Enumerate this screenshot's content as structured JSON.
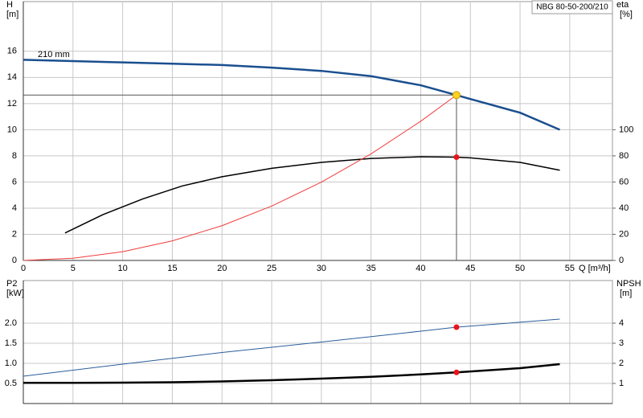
{
  "chart_data": [
    {
      "type": "line",
      "title": "NBG 80-50-200/210",
      "annotation": "210 mm",
      "y_label": [
        "H",
        "[m]"
      ],
      "y2_label": [
        "eta",
        "[%]"
      ],
      "x_label": "Q [m³/h]",
      "xlim": [
        0,
        59.3
      ],
      "xticks": [
        0,
        5,
        10,
        15,
        20,
        25,
        30,
        35,
        40,
        45,
        50,
        55
      ],
      "ylim": [
        0,
        19.8
      ],
      "yticks": [
        0,
        2,
        4,
        6,
        8,
        10,
        12,
        14,
        16
      ],
      "y2lim": [
        0,
        198
      ],
      "y2ticks": [
        0,
        20,
        40,
        60,
        80,
        100
      ],
      "grid": true,
      "series": [
        {
          "color": "#1a4f8f",
          "x": [
            0,
            5,
            10,
            15,
            20,
            25,
            30,
            35,
            40,
            43.6,
            45,
            50,
            54
          ],
          "values": [
            15.35,
            15.25,
            15.15,
            15.05,
            14.95,
            14.75,
            14.5,
            14.1,
            13.4,
            12.65,
            12.35,
            11.3,
            10.0
          ]
        },
        {
          "color": "#000000",
          "axis": "y2",
          "x": [
            4.2,
            8,
            12,
            16,
            20,
            25,
            30,
            35,
            40,
            43.6,
            45,
            50,
            54
          ],
          "values": [
            21,
            35,
            47,
            57,
            64,
            70.5,
            75,
            78,
            79.3,
            79,
            78.5,
            75,
            69
          ]
        },
        {
          "color": "#f03c3c",
          "x": [
            0,
            5,
            10,
            15,
            20,
            25,
            30,
            35,
            40,
            43.6
          ],
          "values": [
            0,
            0.17,
            0.67,
            1.5,
            2.66,
            4.16,
            5.99,
            8.15,
            10.65,
            12.65
          ]
        }
      ],
      "operating_point": {
        "x": 43.6,
        "h": 12.65,
        "eta": 79
      }
    },
    {
      "type": "line",
      "y_label": [
        "P2",
        "[kW]"
      ],
      "y2_label": [
        "NPSH",
        "[m]"
      ],
      "xlim": [
        0,
        59.3
      ],
      "ylim": [
        0,
        3.06
      ],
      "yticks": [
        0.5,
        {
          "value": 1,
          "label": "1.0"
        },
        1.5,
        {
          "value": 2,
          "label": "2.0"
        }
      ],
      "y2lim": [
        0,
        6.12
      ],
      "y2ticks": [
        1,
        2,
        3,
        4
      ],
      "grid": true,
      "series": [
        {
          "color": "#2a5d9a",
          "x": [
            0,
            10,
            20,
            30,
            40,
            43.6,
            54
          ],
          "values": [
            0.68,
            0.98,
            1.27,
            1.53,
            1.8,
            1.9,
            2.1
          ]
        },
        {
          "color": "#000000",
          "axis": "y2",
          "x": [
            0,
            5,
            10,
            15,
            20,
            25,
            30,
            35,
            40,
            43.6,
            50,
            54
          ],
          "values": [
            1.03,
            1.03,
            1.04,
            1.06,
            1.1,
            1.16,
            1.24,
            1.33,
            1.45,
            1.55,
            1.76,
            1.96
          ]
        }
      ],
      "operating_point": {
        "x": 43.6,
        "p2": 1.9,
        "npsh": 1.55
      }
    }
  ]
}
